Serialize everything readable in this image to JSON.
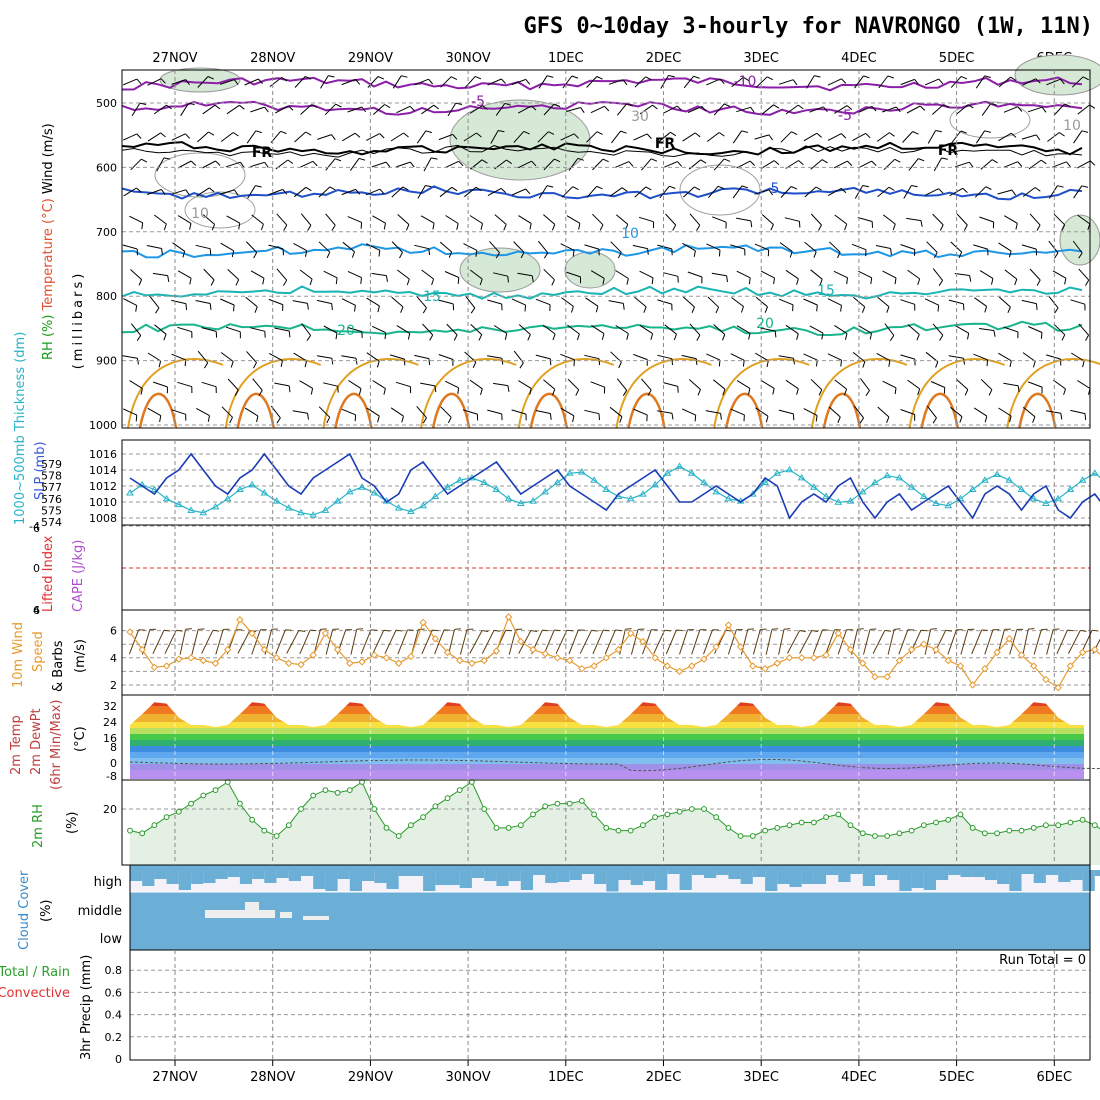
{
  "title": "GFS 0~10day 3-hourly for NAVRONGO (1W, 11N)",
  "dates": [
    "27NOV",
    "28NOV",
    "29NOV",
    "30NOV",
    "1DEC",
    "2DEC",
    "3DEC",
    "4DEC",
    "5DEC",
    "6DEC"
  ],
  "colors": {
    "temp_minus10": "#8b1fa8",
    "temp_minus5": "#8b1fa8",
    "freezing": "#000000",
    "temp_5": "#1f4fc8",
    "temp_10": "#1e96e6",
    "temp_15": "#1ab4b4",
    "temp_20": "#18b48c",
    "temp_25": "#e0a020",
    "temp_30": "#e07820",
    "rh_shade": "#d6e8d6",
    "slp": "#1a3cb4",
    "thickness": "#28b4c8",
    "wind10": "#e89a30",
    "rh2m": "#2a9a2a",
    "cloud": "#6baed6",
    "lifted_zero": "#e03030"
  },
  "panels": {
    "upper": {
      "axis_label_parts": [
        {
          "text": "RH (%)",
          "color": "#1a9a1a"
        },
        {
          "text": "Temperature (°C)",
          "color": "#e05030"
        },
        {
          "text": "Wind (m/s)",
          "color": "#000000"
        }
      ],
      "unit_label": "(millibars)",
      "ticks": [
        500,
        600,
        700,
        800,
        900,
        1000
      ],
      "contour_labels": [
        {
          "text": "-10",
          "color": "#8b1fa8"
        },
        {
          "text": "-5",
          "color": "#8b1fa8"
        },
        {
          "text": "-5",
          "color": "#8b1fa8"
        },
        {
          "text": "FR",
          "color": "#000000"
        },
        {
          "text": "FR",
          "color": "#000000"
        },
        {
          "text": "FR",
          "color": "#000000"
        },
        {
          "text": "5",
          "color": "#1f4fc8"
        },
        {
          "text": "10",
          "color": "#1e96e6"
        },
        {
          "text": "15",
          "color": "#1ab4b4"
        },
        {
          "text": "15",
          "color": "#1ab4b4"
        },
        {
          "text": "20",
          "color": "#18b48c"
        },
        {
          "text": "20",
          "color": "#18b48c"
        },
        {
          "text": "10",
          "color": "#999999"
        },
        {
          "text": "10",
          "color": "#999999"
        },
        {
          "text": "30",
          "color": "#999999"
        }
      ]
    },
    "slp": {
      "label_thickness": "1000~500mb Thickness (dm)",
      "label_slp": "SLP (mb)",
      "thickness_ticks": [
        574,
        575,
        576,
        577,
        578,
        579
      ],
      "slp_ticks": [
        1008,
        1010,
        1012,
        1014,
        1016
      ]
    },
    "cape": {
      "label_li": "Lifted Index",
      "label_cape": "CAPE (J/kg)",
      "ticks": [
        -4,
        0,
        4
      ],
      "tick_labels": [
        "-4",
        "0",
        "4"
      ],
      "end_labels": [
        "6",
        "6"
      ]
    },
    "wind": {
      "label_a": "10m Wind",
      "label_b": "Speed",
      "label_c": "& Barbs",
      "unit": "(m/s)",
      "ticks": [
        2,
        4,
        6
      ]
    },
    "temp": {
      "label_a": "2m Temp",
      "label_b": "2m DewPt",
      "label_c": "(6hr Min/Max)",
      "unit": "(°C)",
      "ticks": [
        "32",
        "24",
        "16",
        "8",
        "0",
        "-8"
      ]
    },
    "rh": {
      "label": "2m RH",
      "unit": "(%)",
      "ticks": [
        "20"
      ]
    },
    "cloud": {
      "label": "Cloud Cover",
      "unit": "(%)",
      "levels": [
        "high",
        "middle",
        "low"
      ]
    },
    "precip": {
      "label_total": "Total / Rain",
      "label_conv": "Convective",
      "label_precip": "3hr Precip (mm)",
      "ticks": [
        "0.8",
        "0.6",
        "0.4",
        "0.2",
        "0"
      ],
      "run_total": "Run Total = 0"
    }
  },
  "chart_data": {
    "type": "line",
    "x_unit": "3-hourly steps from 26NOV 12UTC",
    "slp_mb": [
      1013,
      1012,
      1011,
      1013,
      1014,
      1016,
      1014,
      1012,
      1011,
      1013,
      1014,
      1016,
      1014,
      1012,
      1011,
      1013,
      1014,
      1015,
      1016,
      1013,
      1012,
      1010,
      1011,
      1014,
      1015,
      1013,
      1011,
      1012,
      1013,
      1014,
      1015,
      1013,
      1011,
      1012,
      1013,
      1014,
      1012,
      1011,
      1010,
      1009,
      1011,
      1012,
      1013,
      1014,
      1012,
      1010,
      1010,
      1011,
      1012,
      1011,
      1010,
      1011,
      1013,
      1012,
      1008,
      1010,
      1011,
      1010,
      1012,
      1013,
      1010,
      1008,
      1010,
      1011,
      1009,
      1010,
      1011,
      1012,
      1010,
      1008,
      1011,
      1012,
      1011,
      1009,
      1011,
      1012,
      1009,
      1008,
      1010,
      1011,
      1009
    ],
    "thickness_dm": [
      576.5,
      577.2,
      576.8,
      576.0,
      575.5,
      575.0,
      574.8,
      575.3,
      576.0,
      576.8,
      577.2,
      576.5,
      575.8,
      575.2,
      574.8,
      574.6,
      575.0,
      575.8,
      576.6,
      577.0,
      576.5,
      575.8,
      575.2,
      574.9,
      575.4,
      576.2,
      577.0,
      577.6,
      577.8,
      577.4,
      576.8,
      576.0,
      575.6,
      575.8,
      576.6,
      577.4,
      578.2,
      578.3,
      577.6,
      576.8,
      576.2,
      576.0,
      576.4,
      577.2,
      578.2,
      578.8,
      578.2,
      577.4,
      576.6,
      576.0,
      575.8,
      576.4,
      577.4,
      578.2,
      578.5,
      577.8,
      577.0,
      576.2,
      575.7,
      575.8,
      576.6,
      577.4,
      578.0,
      577.8,
      577.0,
      576.2,
      575.6,
      575.4,
      576.0,
      576.8,
      577.6,
      578.1,
      577.6,
      576.8,
      576.0,
      575.6,
      576.0,
      576.8,
      577.6,
      578.2,
      577.4,
      576.6,
      575.8,
      575.5
    ],
    "wind10_ms": [
      5.9,
      4.6,
      3.3,
      3.4,
      3.9,
      4.0,
      3.8,
      3.6,
      4.6,
      6.8,
      5.8,
      4.6,
      4.0,
      3.6,
      3.5,
      4.2,
      5.8,
      4.6,
      3.6,
      3.7,
      4.2,
      4.0,
      3.6,
      4.1,
      6.6,
      5.4,
      4.4,
      3.8,
      3.6,
      3.8,
      4.5,
      7.0,
      5.2,
      4.6,
      4.3,
      4.0,
      3.8,
      3.2,
      3.4,
      4.0,
      4.6,
      5.8,
      5.2,
      4.0,
      3.4,
      3.0,
      3.4,
      3.9,
      4.8,
      6.4,
      4.8,
      3.4,
      3.2,
      3.6,
      4.0,
      4.0,
      4.0,
      4.2,
      5.8,
      4.6,
      3.6,
      2.6,
      2.6,
      3.8,
      4.6,
      5.0,
      4.6,
      3.8,
      3.4,
      2.0,
      3.2,
      4.4,
      5.4,
      4.2,
      3.4,
      2.4,
      1.8,
      3.4,
      4.4,
      4.6,
      3.8,
      3.0,
      4.0,
      5.0,
      4.0
    ],
    "rh2m_pct": [
      12,
      11,
      14,
      17,
      19,
      22,
      25,
      27,
      30,
      22,
      16,
      12,
      10,
      14,
      20,
      25,
      27,
      26,
      27,
      30,
      20,
      13,
      10,
      14,
      17,
      21,
      24,
      27,
      30,
      20,
      13,
      13,
      14,
      18,
      21,
      22,
      22,
      23,
      18,
      13,
      12,
      12,
      14,
      17,
      18,
      19,
      20,
      20,
      17,
      13,
      10,
      10,
      12,
      13,
      14,
      15,
      15,
      17,
      18,
      14,
      11,
      10,
      10,
      11,
      12,
      14,
      15,
      16,
      18,
      13,
      11,
      11,
      12,
      12,
      13,
      14,
      14,
      15,
      16,
      14,
      11,
      11,
      12,
      13,
      14
    ]
  }
}
